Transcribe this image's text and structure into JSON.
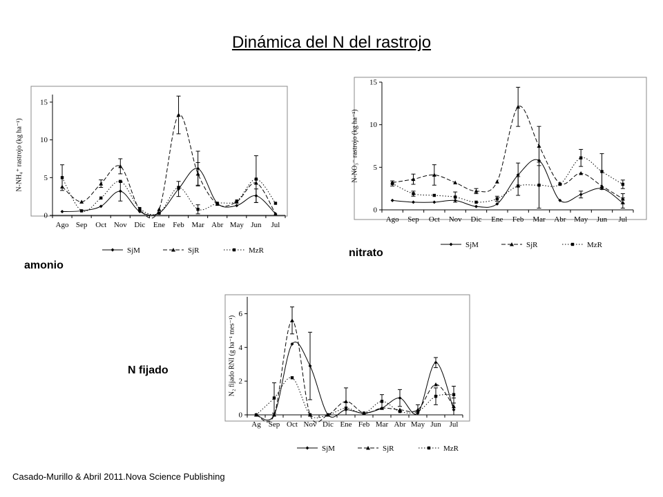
{
  "title": "Dinámica del N del rastrojo",
  "captions": {
    "amonio": "amonio",
    "nitrato": "nitrato",
    "fijado": "N fijado"
  },
  "credit": "Casado-Murillo & Abril 2011.Nova Science Publishing",
  "chart_data": [
    {
      "id": "amonio",
      "type": "line",
      "ylabel": "N-NH₄⁺ rastrojo (kg ha⁻¹)",
      "categories": [
        "Ago",
        "Sep",
        "Oct",
        "Nov",
        "Dic",
        "Ene",
        "Feb",
        "Mar",
        "Abr",
        "May",
        "Jun",
        "Jul"
      ],
      "ylim": [
        0,
        16
      ],
      "yticks": [
        0,
        5,
        10,
        15
      ],
      "grid": false,
      "legend_position": "bottom",
      "series": [
        {
          "name": "SjM",
          "style": "solid",
          "marker": "diamond",
          "values": [
            0.5,
            0.6,
            1.2,
            3.2,
            0.5,
            0.3,
            3.5,
            6.2,
            1.6,
            1.3,
            2.6,
            0.2
          ],
          "err": [
            0,
            0,
            0,
            1.3,
            0,
            0,
            1.0,
            2.3,
            0,
            0,
            0.9,
            0
          ]
        },
        {
          "name": "SjR",
          "style": "dash",
          "marker": "triangle",
          "values": [
            3.8,
            1.8,
            4.2,
            6.5,
            0.8,
            0.8,
            13.3,
            5.5,
            1.5,
            1.8,
            4.3,
            0.2
          ],
          "err": [
            0,
            0,
            0.5,
            1.0,
            0,
            0,
            2.5,
            1.5,
            0,
            0,
            0,
            0
          ]
        },
        {
          "name": "MzR",
          "style": "dot",
          "marker": "square",
          "values": [
            5.0,
            0.6,
            2.3,
            4.5,
            0.9,
            0.3,
            3.7,
            0.8,
            1.6,
            1.9,
            4.8,
            1.6
          ],
          "err": [
            1.7,
            0,
            0,
            0,
            0,
            0,
            0,
            0.6,
            0,
            0,
            3.1,
            0
          ]
        }
      ]
    },
    {
      "id": "nitrato",
      "type": "line",
      "ylabel": "N-NO₃⁻ rastrojo (kg ha⁻¹)",
      "categories": [
        "Ago",
        "Sep",
        "Oct",
        "Nov",
        "Dic",
        "Ene",
        "Feb",
        "Mar",
        "Abr",
        "May",
        "Jun",
        "Jul"
      ],
      "ylim": [
        0,
        15
      ],
      "yticks": [
        0,
        5,
        10,
        15
      ],
      "grid": false,
      "legend_position": "bottom",
      "series": [
        {
          "name": "SjM",
          "style": "solid",
          "marker": "diamond",
          "values": [
            1.1,
            0.9,
            0.9,
            1.1,
            0.4,
            0.7,
            4.1,
            5.8,
            1.1,
            1.8,
            2.5,
            0.8
          ],
          "err": [
            0,
            0,
            0,
            0,
            0,
            0,
            1.4,
            0,
            0,
            0.4,
            0,
            0.6
          ]
        },
        {
          "name": "SjR",
          "style": "dash",
          "marker": "triangle",
          "values": [
            3.2,
            3.6,
            4.1,
            3.2,
            2.2,
            3.3,
            12.1,
            7.5,
            3.1,
            4.3,
            2.8,
            1.3
          ],
          "err": [
            0,
            0.6,
            1.2,
            0,
            0.3,
            0,
            2.3,
            2.3,
            0,
            0,
            0,
            0.6
          ]
        },
        {
          "name": "MzR",
          "style": "dot",
          "marker": "square",
          "values": [
            3.1,
            1.9,
            1.7,
            1.5,
            0.9,
            1.3,
            2.8,
            2.9,
            3.0,
            6.1,
            4.5,
            3.0
          ],
          "err": [
            0.3,
            0.3,
            0,
            0.6,
            0,
            0.3,
            1.1,
            2.7,
            0,
            1.0,
            2.1,
            0.5
          ]
        }
      ]
    },
    {
      "id": "fijado",
      "type": "line",
      "ylabel": "N₂ fijado RNI (g ha⁻¹ mes⁻¹)",
      "categories": [
        "Ag",
        "Sep",
        "Oct",
        "Nov",
        "Dic",
        "Ene",
        "Feb",
        "Mar",
        "Abr",
        "May",
        "Jun",
        "Jul"
      ],
      "ylim": [
        0,
        7
      ],
      "yticks": [
        0,
        2,
        4,
        6
      ],
      "grid": false,
      "legend_position": "bottom",
      "series": [
        {
          "name": "SjM",
          "style": "solid",
          "marker": "diamond",
          "values": [
            0,
            0,
            4.2,
            2.9,
            0,
            0.3,
            0.1,
            0.4,
            1.0,
            0.1,
            3.1,
            0.3
          ],
          "err": [
            0,
            0,
            0,
            2.0,
            0,
            0,
            0,
            0,
            0.5,
            0,
            0.3,
            0
          ]
        },
        {
          "name": "SjR",
          "style": "dash",
          "marker": "triangle",
          "values": [
            0,
            0,
            5.6,
            0,
            0,
            0.8,
            0.1,
            0.4,
            0.3,
            0.3,
            1.8,
            0.5
          ],
          "err": [
            0,
            0,
            0.8,
            0,
            0,
            0.8,
            0,
            0,
            0,
            0.3,
            0,
            0.5
          ]
        },
        {
          "name": "MzR",
          "style": "dot",
          "marker": "square",
          "values": [
            0,
            1.0,
            2.2,
            0,
            0,
            0.4,
            0.1,
            0.8,
            0.2,
            0.2,
            1.1,
            1.2
          ],
          "err": [
            0,
            0.9,
            0,
            0,
            0,
            0,
            0,
            0.4,
            0,
            0,
            0.5,
            0.5
          ]
        }
      ]
    }
  ]
}
